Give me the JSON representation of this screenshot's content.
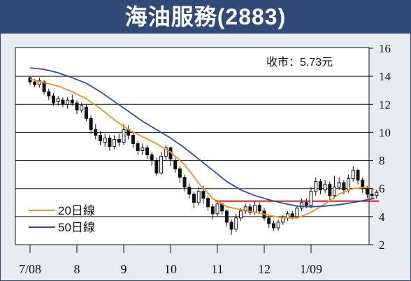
{
  "header": {
    "title": "海油服務(2883)"
  },
  "colors": {
    "frame": "#2f4a76",
    "background": "#e8ebf2",
    "ma20": "#f0901e",
    "ma50": "#2f4ea6",
    "reference_line": "#d42020",
    "candle": "#111111"
  },
  "chart_data": {
    "type": "candlestick",
    "annotation": "收市：5.73元",
    "x_tick_labels": [
      "7/08",
      "8",
      "9",
      "10",
      "11",
      "12",
      "1/09"
    ],
    "y_ticks": [
      2,
      4,
      6,
      8,
      10,
      12,
      14,
      16
    ],
    "ylim": [
      2,
      16
    ],
    "grid": "horizontal",
    "legend_position": "bottom-left",
    "reference_line": {
      "value": 5.1,
      "from_month": 3.95,
      "to_month": 7.45
    },
    "series": [
      {
        "name": "20日線",
        "color": "#f0901e",
        "points": [
          [
            0,
            13.8
          ],
          [
            0.3,
            13.55
          ],
          [
            0.6,
            13.3
          ],
          [
            0.9,
            12.9
          ],
          [
            1.2,
            12.4
          ],
          [
            1.5,
            11.7
          ],
          [
            1.8,
            10.9
          ],
          [
            2.1,
            10.2
          ],
          [
            2.4,
            9.7
          ],
          [
            2.7,
            9.2
          ],
          [
            3.0,
            8.6
          ],
          [
            3.3,
            7.7
          ],
          [
            3.6,
            6.4
          ],
          [
            3.9,
            5.3
          ],
          [
            4.2,
            4.7
          ],
          [
            4.5,
            4.5
          ],
          [
            4.8,
            4.3
          ],
          [
            5.1,
            4.1
          ],
          [
            5.4,
            3.9
          ],
          [
            5.7,
            3.9
          ],
          [
            6.0,
            4.3
          ],
          [
            6.3,
            4.9
          ],
          [
            6.6,
            5.6
          ],
          [
            6.9,
            6.0
          ],
          [
            7.2,
            6.1
          ],
          [
            7.35,
            5.9
          ]
        ]
      },
      {
        "name": "50日線",
        "color": "#2f4ea6",
        "points": [
          [
            0,
            14.6
          ],
          [
            0.3,
            14.5
          ],
          [
            0.6,
            14.25
          ],
          [
            0.9,
            13.9
          ],
          [
            1.2,
            13.5
          ],
          [
            1.5,
            12.9
          ],
          [
            1.8,
            12.2
          ],
          [
            2.1,
            11.5
          ],
          [
            2.4,
            10.8
          ],
          [
            2.7,
            10.2
          ],
          [
            3.0,
            9.6
          ],
          [
            3.3,
            8.9
          ],
          [
            3.6,
            8.1
          ],
          [
            3.9,
            7.3
          ],
          [
            4.2,
            6.5
          ],
          [
            4.5,
            5.9
          ],
          [
            4.8,
            5.5
          ],
          [
            5.1,
            5.2
          ],
          [
            5.4,
            4.95
          ],
          [
            5.7,
            4.75
          ],
          [
            6.0,
            4.7
          ],
          [
            6.3,
            4.75
          ],
          [
            6.6,
            4.85
          ],
          [
            6.9,
            5.0
          ],
          [
            7.2,
            5.2
          ],
          [
            7.35,
            5.3
          ]
        ]
      }
    ],
    "candles": [
      [
        0.0,
        13.9,
        13.6,
        14.0,
        13.4
      ],
      [
        0.1,
        13.6,
        13.4,
        13.8,
        13.2
      ],
      [
        0.2,
        13.4,
        13.7,
        13.9,
        13.2
      ],
      [
        0.3,
        13.6,
        12.9,
        13.7,
        12.7
      ],
      [
        0.4,
        12.9,
        12.6,
        13.1,
        12.3
      ],
      [
        0.5,
        12.6,
        12.1,
        12.8,
        11.9
      ],
      [
        0.6,
        12.2,
        12.4,
        12.6,
        11.9
      ],
      [
        0.7,
        12.3,
        12.0,
        12.5,
        11.8
      ],
      [
        0.8,
        12.0,
        12.3,
        12.5,
        11.7
      ],
      [
        0.9,
        12.3,
        12.1,
        12.7,
        11.9
      ],
      [
        1.0,
        12.1,
        11.6,
        12.3,
        11.3
      ],
      [
        1.1,
        11.6,
        11.9,
        12.1,
        11.4
      ],
      [
        1.2,
        11.8,
        11.0,
        12.0,
        10.8
      ],
      [
        1.3,
        11.0,
        10.2,
        11.2,
        9.9
      ],
      [
        1.4,
        10.2,
        9.8,
        10.6,
        9.5
      ],
      [
        1.5,
        9.8,
        9.4,
        10.1,
        9.1
      ],
      [
        1.6,
        9.3,
        9.6,
        9.9,
        9.0
      ],
      [
        1.7,
        9.6,
        9.0,
        9.8,
        8.7
      ],
      [
        1.8,
        9.0,
        9.5,
        9.8,
        8.8
      ],
      [
        1.9,
        9.5,
        9.3,
        9.9,
        9.0
      ],
      [
        2.0,
        9.3,
        10.2,
        10.6,
        9.1
      ],
      [
        2.1,
        10.2,
        9.8,
        10.5,
        9.5
      ],
      [
        2.2,
        9.8,
        9.2,
        10.0,
        8.9
      ],
      [
        2.3,
        9.2,
        8.7,
        9.4,
        8.4
      ],
      [
        2.4,
        8.7,
        8.9,
        9.2,
        8.4
      ],
      [
        2.5,
        8.9,
        8.4,
        9.1,
        8.1
      ],
      [
        2.6,
        8.4,
        8.0,
        8.6,
        7.6
      ],
      [
        2.7,
        8.0,
        7.1,
        8.2,
        6.9
      ],
      [
        2.8,
        7.1,
        8.3,
        8.6,
        7.0
      ],
      [
        2.9,
        8.3,
        8.9,
        9.1,
        8.0
      ],
      [
        3.0,
        8.9,
        8.1,
        9.0,
        7.6
      ],
      [
        3.1,
        8.0,
        7.4,
        8.2,
        7.1
      ],
      [
        3.2,
        7.4,
        6.8,
        7.6,
        6.4
      ],
      [
        3.3,
        6.8,
        6.1,
        7.0,
        5.8
      ],
      [
        3.4,
        6.1,
        5.6,
        6.4,
        5.3
      ],
      [
        3.5,
        5.6,
        5.0,
        5.8,
        4.6
      ],
      [
        3.6,
        5.0,
        5.8,
        6.1,
        4.8
      ],
      [
        3.7,
        5.8,
        5.3,
        6.2,
        4.9
      ],
      [
        3.8,
        5.3,
        4.7,
        5.5,
        4.4
      ],
      [
        3.9,
        4.7,
        4.2,
        4.9,
        3.8
      ],
      [
        4.0,
        4.2,
        4.9,
        5.2,
        4.0
      ],
      [
        4.1,
        4.9,
        4.4,
        5.0,
        4.1
      ],
      [
        4.2,
        4.4,
        3.6,
        4.5,
        3.3
      ],
      [
        4.3,
        3.6,
        3.1,
        3.8,
        2.7
      ],
      [
        4.4,
        3.1,
        3.9,
        4.2,
        2.9
      ],
      [
        4.5,
        3.9,
        4.4,
        4.6,
        3.7
      ],
      [
        4.6,
        4.4,
        4.7,
        4.9,
        4.2
      ],
      [
        4.7,
        4.7,
        4.3,
        4.9,
        4.1
      ],
      [
        4.8,
        4.3,
        4.8,
        5.1,
        4.1
      ],
      [
        4.9,
        4.8,
        4.4,
        5.0,
        4.2
      ],
      [
        5.0,
        4.4,
        3.9,
        4.6,
        3.7
      ],
      [
        5.1,
        3.9,
        3.5,
        4.1,
        3.2
      ],
      [
        5.2,
        3.5,
        3.2,
        3.7,
        3.0
      ],
      [
        5.3,
        3.2,
        3.6,
        3.8,
        3.0
      ],
      [
        5.4,
        3.6,
        3.9,
        4.1,
        3.4
      ],
      [
        5.5,
        3.9,
        4.2,
        4.4,
        3.7
      ],
      [
        5.6,
        4.2,
        4.0,
        4.4,
        3.8
      ],
      [
        5.7,
        4.0,
        4.6,
        4.8,
        3.9
      ],
      [
        5.8,
        4.6,
        5.0,
        5.3,
        4.4
      ],
      [
        5.9,
        5.0,
        4.8,
        5.3,
        4.6
      ],
      [
        6.0,
        4.8,
        5.8,
        6.1,
        4.6
      ],
      [
        6.1,
        5.8,
        6.5,
        6.8,
        5.5
      ],
      [
        6.2,
        6.5,
        5.9,
        6.7,
        5.6
      ],
      [
        6.3,
        5.9,
        6.3,
        6.6,
        5.7
      ],
      [
        6.4,
        6.3,
        5.5,
        6.5,
        5.2
      ],
      [
        6.5,
        5.5,
        6.1,
        6.9,
        5.3
      ],
      [
        6.6,
        6.1,
        6.4,
        6.8,
        5.9
      ],
      [
        6.7,
        6.4,
        5.9,
        6.6,
        5.6
      ],
      [
        6.8,
        5.9,
        6.7,
        7.0,
        5.7
      ],
      [
        6.9,
        6.7,
        7.3,
        7.6,
        6.5
      ],
      [
        7.0,
        7.3,
        6.6,
        7.4,
        6.3
      ],
      [
        7.1,
        6.6,
        6.0,
        6.8,
        5.7
      ],
      [
        7.2,
        6.0,
        5.6,
        6.2,
        5.3
      ],
      [
        7.3,
        5.6,
        5.5,
        6.0,
        5.2
      ],
      [
        7.4,
        5.5,
        5.73,
        5.9,
        5.3
      ]
    ]
  }
}
